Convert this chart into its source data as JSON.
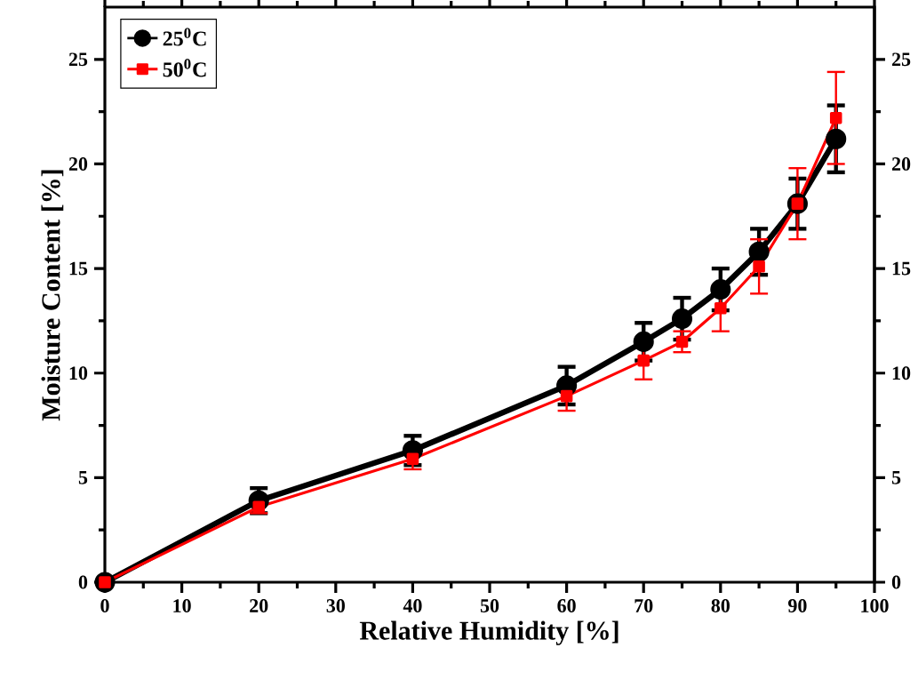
{
  "chart_data": {
    "type": "line",
    "xlabel": "Relative Humidity [%]",
    "ylabel": "Moisture Content [%]",
    "x": [
      0,
      20,
      40,
      60,
      70,
      75,
      80,
      85,
      90,
      95
    ],
    "series": [
      {
        "name": "25$^{0}$C",
        "color": "#000000",
        "marker": "circle",
        "values": [
          0,
          3.9,
          6.3,
          9.4,
          11.5,
          12.6,
          14.0,
          15.8,
          18.1,
          21.2
        ],
        "errors": [
          null,
          0.6,
          0.7,
          0.9,
          0.9,
          1.0,
          1.0,
          1.1,
          1.2,
          1.6
        ]
      },
      {
        "name": "50$^{0}$C",
        "color": "#ff0000",
        "marker": "square",
        "values": [
          0,
          3.6,
          5.9,
          8.9,
          10.6,
          11.5,
          13.1,
          15.1,
          18.1,
          22.2
        ],
        "errors": [
          null,
          0.3,
          0.5,
          0.7,
          0.9,
          0.5,
          1.1,
          1.3,
          1.7,
          2.2
        ]
      }
    ],
    "xlim": [
      0,
      100
    ],
    "xticks": [
      0,
      10,
      20,
      30,
      40,
      50,
      60,
      70,
      80,
      90,
      100
    ],
    "ylim": [
      0,
      27.5
    ],
    "yticks": [
      0,
      5,
      10,
      15,
      20,
      25
    ],
    "y2lim": [
      0,
      27.5
    ],
    "y2ticks": [
      0,
      5,
      10,
      15,
      20,
      25
    ],
    "legend": "top left",
    "grid": false,
    "line_style": "solid"
  }
}
